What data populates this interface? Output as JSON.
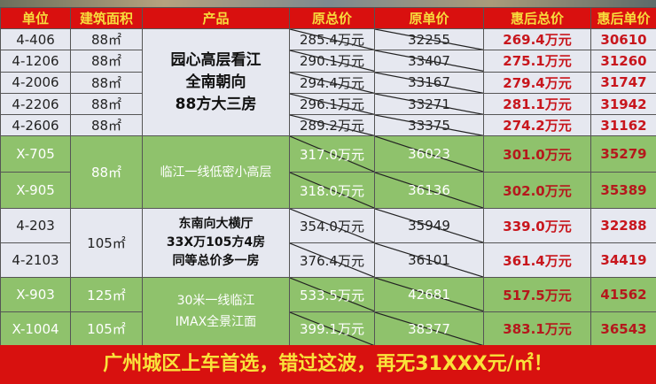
{
  "headers": [
    "单位",
    "建筑面积",
    "产品",
    "原总价",
    "原单价",
    "惠后总价",
    "惠后单价"
  ],
  "rows": [
    {
      "unit": "4-406",
      "area": "88㎡",
      "orig_total": "285.4万元",
      "orig_unit": "32255",
      "new_total": "269.4万元",
      "new_unit": "30610"
    },
    {
      "unit": "4-1206",
      "area": "88㎡",
      "orig_total": "290.1万元",
      "orig_unit": "33407",
      "new_total": "275.1万元",
      "new_unit": "31260"
    },
    {
      "unit": "4-2006",
      "area": "88㎡",
      "orig_total": "294.4万元",
      "orig_unit": "33167",
      "new_total": "279.4万元",
      "new_unit": "31747"
    },
    {
      "unit": "4-2206",
      "area": "88㎡",
      "orig_total": "296.1万元",
      "orig_unit": "33271",
      "new_total": "281.1万元",
      "new_unit": "31942"
    },
    {
      "unit": "4-2606",
      "area": "88㎡",
      "orig_total": "289.2万元",
      "orig_unit": "33375",
      "new_total": "274.2万元",
      "new_unit": "31162"
    },
    {
      "unit": "X-705",
      "area": "88㎡",
      "orig_total": "317.0万元",
      "orig_unit": "36023",
      "new_total": "301.0万元",
      "new_unit": "35279"
    },
    {
      "unit": "X-905",
      "orig_total": "318.0万元",
      "orig_unit": "36136",
      "new_total": "302.0万元",
      "new_unit": "35389"
    },
    {
      "unit": "4-203",
      "area": "105㎡",
      "orig_total": "354.0万元",
      "orig_unit": "35949",
      "new_total": "339.0万元",
      "new_unit": "32288"
    },
    {
      "unit": "4-2103",
      "orig_total": "376.4万元",
      "orig_unit": "36101",
      "new_total": "361.4万元",
      "new_unit": "34419"
    },
    {
      "unit": "X-903",
      "area": "125㎡",
      "orig_total": "533.5万元",
      "orig_unit": "42681",
      "new_total": "517.5万元",
      "new_unit": "41562"
    },
    {
      "unit": "X-1004",
      "area": "105㎡",
      "orig_total": "399.1万元",
      "orig_unit": "38377",
      "new_total": "383.1万元",
      "new_unit": "36543"
    }
  ],
  "products": [
    [
      "园心高层看江",
      "全南朝向",
      "88方大三房"
    ],
    [
      "临江一线低密小高层"
    ],
    [
      "东南向大横厅",
      "33X万105方4房",
      "同等总价多一房"
    ],
    [
      "30米一线临江",
      "IMAX全景江面"
    ]
  ],
  "footer": "广州城区上车首选，错过这波，再无31XXX元/㎡！",
  "colors": {
    "header_bg": "#d9100f",
    "header_text": "#f7dc3c",
    "green_row": "#8fc26c",
    "discount_text": "#c8161d"
  }
}
